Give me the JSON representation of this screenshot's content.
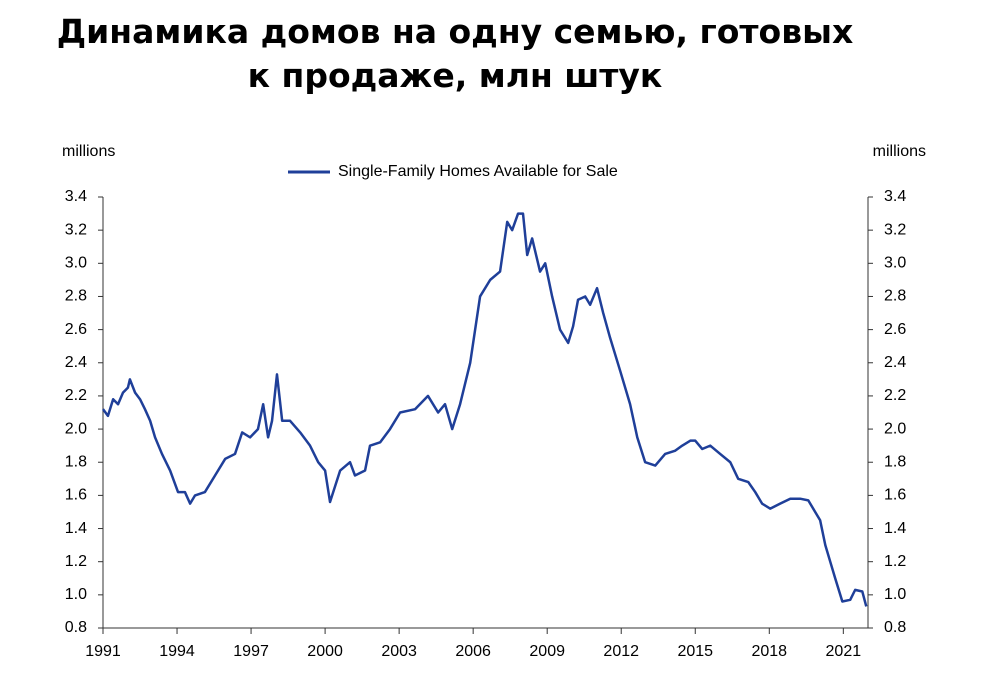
{
  "chart_data": {
    "type": "line",
    "title": "Динамика домов на одну семью, готовых к продаже, млн штук",
    "y_label": "millions",
    "y2_label": "millions",
    "xlim": [
      1991,
      2022
    ],
    "xticks": [
      1991,
      1994,
      1997,
      2000,
      2003,
      2006,
      2009,
      2012,
      2015,
      2018,
      2021
    ],
    "ylim": [
      0.8,
      3.4
    ],
    "yticks": [
      0.8,
      {
        "value": 1,
        "label": "1.0"
      },
      1.2,
      1.4,
      1.6,
      1.8,
      {
        "value": 2,
        "label": "2.0"
      },
      2.2,
      2.4,
      2.6,
      2.8,
      {
        "value": 3,
        "label": "3.0"
      },
      3.2,
      3.4
    ],
    "y2lim": [
      0.8,
      3.4
    ],
    "y2ticks": [
      0.8,
      {
        "value": 1,
        "label": "1.0"
      },
      1.2,
      1.4,
      1.6,
      1.8,
      {
        "value": 2,
        "label": "2.0"
      },
      2.2,
      2.4,
      2.6,
      2.8,
      {
        "value": 3,
        "label": "3.0"
      },
      3.2,
      3.4
    ],
    "legend": "top",
    "x": [
      1991.0,
      1991.2,
      1991.41,
      1991.61,
      1991.81,
      1992.01,
      1992.09,
      1992.3,
      1992.5,
      1992.7,
      1992.91,
      1993.11,
      1993.39,
      1993.72,
      1994.04,
      1994.32,
      1994.53,
      1994.73,
      1995.13,
      1995.54,
      1995.95,
      1996.35,
      1996.64,
      1996.96,
      1997.28,
      1997.49,
      1997.69,
      1997.85,
      1998.05,
      1998.26,
      1998.58,
      1998.99,
      1999.39,
      1999.72,
      2000.0,
      2000.2,
      2000.61,
      2001.01,
      2001.21,
      2001.62,
      2001.82,
      2002.23,
      2002.63,
      2003.04,
      2003.65,
      2004.17,
      2004.58,
      2004.86,
      2005.15,
      2005.47,
      2005.88,
      2006.28,
      2006.69,
      2007.09,
      2007.38,
      2007.58,
      2007.82,
      2008.02,
      2008.19,
      2008.39,
      2008.71,
      2008.92,
      2009.2,
      2009.52,
      2009.85,
      2010.05,
      2010.25,
      2010.54,
      2010.74,
      2011.02,
      2011.27,
      2011.55,
      2011.96,
      2012.36,
      2012.65,
      2012.97,
      2013.38,
      2013.78,
      2014.19,
      2014.47,
      2014.8,
      2015.0,
      2015.28,
      2015.61,
      2016.01,
      2016.42,
      2016.74,
      2017.15,
      2017.43,
      2017.71,
      2018.04,
      2018.44,
      2018.85,
      2019.25,
      2019.58,
      2019.86,
      2020.06,
      2020.27,
      2020.47,
      2020.67,
      2020.96,
      2021.28,
      2021.48,
      2021.77,
      2021.93
    ],
    "series": [
      {
        "name": "Single-Family Homes Available for Sale",
        "color": "#1f3f99",
        "values": [
          2.12,
          2.08,
          2.18,
          2.15,
          2.22,
          2.25,
          2.3,
          2.22,
          2.18,
          2.12,
          2.05,
          1.95,
          1.85,
          1.75,
          1.62,
          1.62,
          1.55,
          1.6,
          1.62,
          1.72,
          1.82,
          1.85,
          1.98,
          1.95,
          2.0,
          2.15,
          1.95,
          2.05,
          2.33,
          2.05,
          2.05,
          1.98,
          1.9,
          1.8,
          1.75,
          1.56,
          1.75,
          1.8,
          1.72,
          1.75,
          1.9,
          1.92,
          2.0,
          2.1,
          2.12,
          2.2,
          2.1,
          2.15,
          2.0,
          2.15,
          2.4,
          2.8,
          2.9,
          2.95,
          3.25,
          3.2,
          3.3,
          3.3,
          3.05,
          3.15,
          2.95,
          3.0,
          2.8,
          2.6,
          2.52,
          2.62,
          2.78,
          2.8,
          2.75,
          2.85,
          2.7,
          2.55,
          2.35,
          2.15,
          1.95,
          1.8,
          1.78,
          1.85,
          1.87,
          1.9,
          1.93,
          1.93,
          1.88,
          1.9,
          1.85,
          1.8,
          1.7,
          1.68,
          1.62,
          1.55,
          1.52,
          1.55,
          1.58,
          1.58,
          1.57,
          1.5,
          1.45,
          1.3,
          1.2,
          1.1,
          0.96,
          0.97,
          1.03,
          1.02,
          0.93
        ]
      }
    ]
  }
}
